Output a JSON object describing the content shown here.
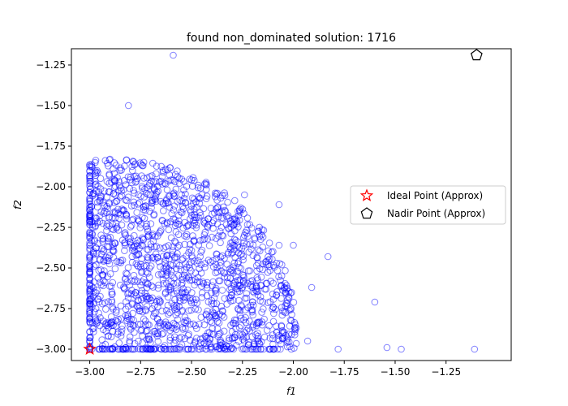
{
  "chart_data": {
    "type": "scatter",
    "title": "found non_dominated solution: 1716",
    "xlabel": "f1",
    "ylabel": "f2",
    "xlim": [
      -3.09,
      -0.93
    ],
    "ylim": [
      -3.07,
      -1.15
    ],
    "xticks": [
      -3.0,
      -2.75,
      -2.5,
      -2.25,
      -2.0,
      -1.75,
      -1.5,
      -1.25
    ],
    "xtick_labels": [
      "−3.00",
      "−2.75",
      "−2.50",
      "−2.25",
      "−2.00",
      "−1.75",
      "−1.50",
      "−1.25"
    ],
    "yticks": [
      -3.0,
      -2.75,
      -2.5,
      -2.25,
      -2.0,
      -1.75,
      -1.5,
      -1.25
    ],
    "ytick_labels": [
      "−3.00",
      "−2.75",
      "−2.50",
      "−2.25",
      "−2.00",
      "−1.75",
      "−1.50",
      "−1.25"
    ],
    "grid": false,
    "legend_position": "center-right",
    "series": [
      {
        "marker": "open-circle",
        "color": "#0000ff",
        "point_count": 1716,
        "outliers": [
          [
            -2.59,
            -1.19
          ],
          [
            -2.81,
            -1.5
          ],
          [
            -2.24,
            -2.05
          ],
          [
            -2.07,
            -2.11
          ],
          [
            -2.07,
            -2.36
          ],
          [
            -2.0,
            -2.36
          ],
          [
            -1.83,
            -2.43
          ],
          [
            -1.91,
            -2.62
          ],
          [
            -1.6,
            -2.71
          ],
          [
            -1.78,
            -3.0
          ],
          [
            -1.54,
            -2.99
          ],
          [
            -1.47,
            -3.0
          ],
          [
            -1.11,
            -3.0
          ],
          [
            -1.93,
            -2.95
          ],
          [
            -2.64,
            -1.9
          ],
          [
            -2.79,
            -1.9
          ]
        ]
      },
      {
        "name": "Ideal Point (Approx)",
        "marker": "star",
        "color": "#ff0000",
        "x": -3.0,
        "y": -3.0
      },
      {
        "name": "Nadir Point (Approx)",
        "marker": "pentagon",
        "color": "#000000",
        "x": -1.1,
        "y": -1.19
      }
    ]
  }
}
